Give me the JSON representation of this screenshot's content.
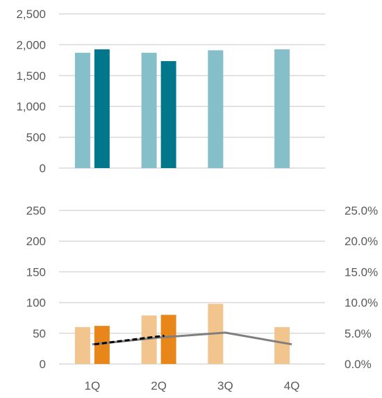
{
  "chart_data": [
    {
      "type": "bar",
      "categories": [
        "1Q",
        "2Q",
        "3Q",
        "4Q"
      ],
      "y_ticks": [
        "0",
        "500",
        "1,000",
        "1,500",
        "2,000",
        "2,500"
      ],
      "ylim": [
        0,
        2500
      ],
      "grid": true,
      "series": [
        {
          "values": [
            1870,
            1870,
            1910,
            1925
          ],
          "color": "#84bfca"
        },
        {
          "values": [
            1925,
            1735,
            null,
            null
          ],
          "color": "#00778b"
        }
      ]
    },
    {
      "type": "bar",
      "categories": [
        "1Q",
        "2Q",
        "3Q",
        "4Q"
      ],
      "x_ticks": [
        "1Q",
        "2Q",
        "3Q",
        "4Q"
      ],
      "y_ticks": [
        "0",
        "50",
        "100",
        "150",
        "200",
        "250"
      ],
      "y2_ticks": [
        "0.0%",
        "5.0%",
        "10.0%",
        "15.0%",
        "20.0%",
        "25.0%"
      ],
      "ylim": [
        0,
        250
      ],
      "y2lim": [
        0,
        25
      ],
      "grid": true,
      "series": [
        {
          "type": "bar",
          "values": [
            60,
            79,
            98,
            60
          ],
          "color": "#f2c58f"
        },
        {
          "type": "bar",
          "values": [
            62,
            80,
            null,
            null
          ],
          "color": "#e8861a"
        },
        {
          "type": "line",
          "axis": "secondary",
          "values": [
            3.2,
            4.3,
            5.1,
            3.2
          ],
          "color": "#7f7f7f",
          "style": "solid"
        },
        {
          "type": "line",
          "axis": "secondary",
          "values": [
            3.2,
            4.6,
            null,
            null
          ],
          "color": "#000000",
          "style": "dashed"
        }
      ]
    }
  ]
}
